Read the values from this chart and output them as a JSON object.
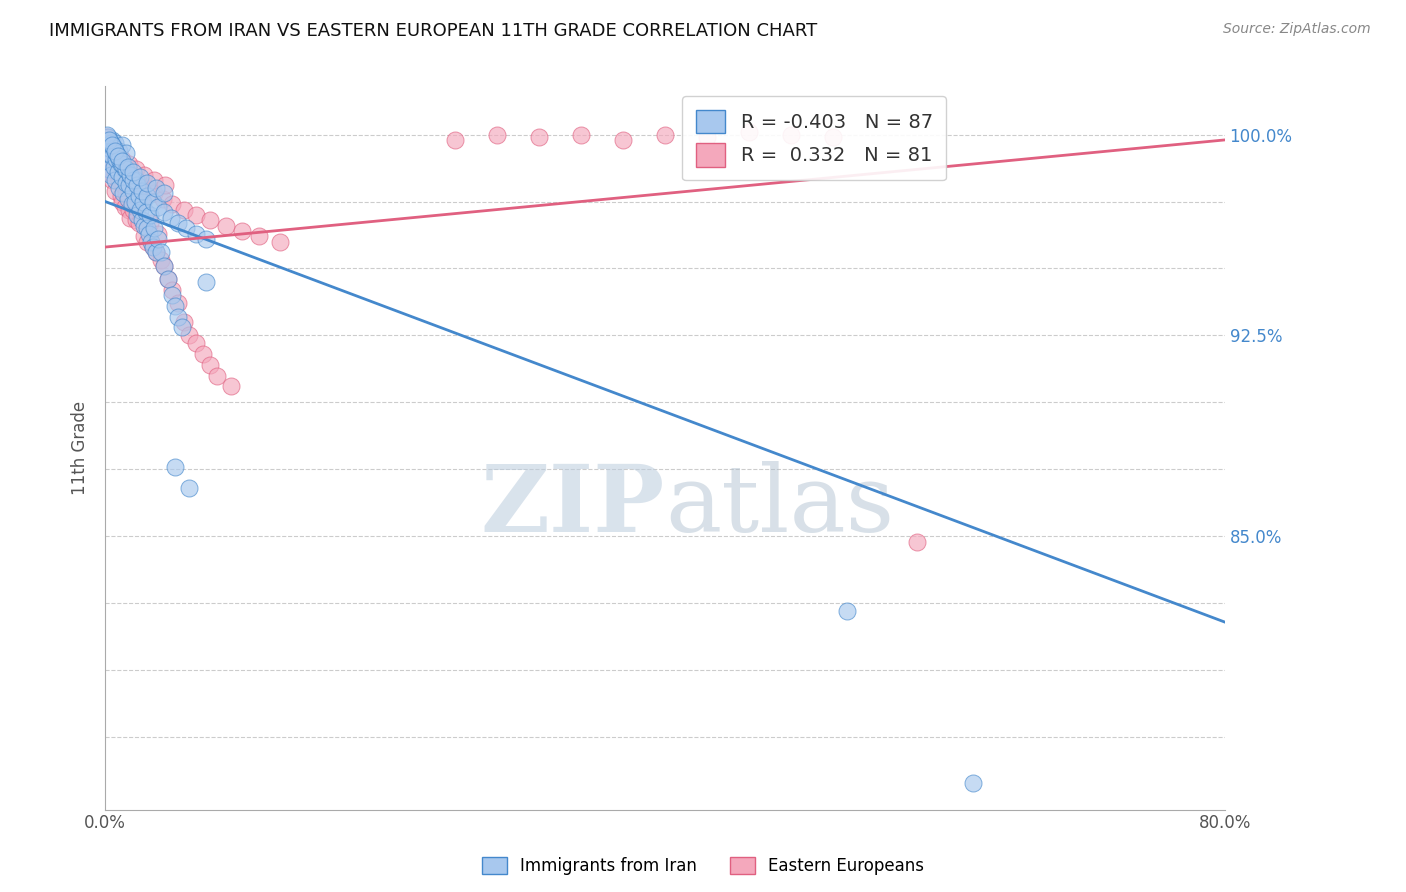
{
  "title": "IMMIGRANTS FROM IRAN VS EASTERN EUROPEAN 11TH GRADE CORRELATION CHART",
  "source": "Source: ZipAtlas.com",
  "ylabel": "11th Grade",
  "xlim": [
    0.0,
    0.8
  ],
  "ylim": [
    0.748,
    1.018
  ],
  "blue_color": "#A8C8EE",
  "pink_color": "#F4A8BC",
  "blue_line_color": "#4488CC",
  "pink_line_color": "#E06080",
  "legend_r_blue": "-0.403",
  "legend_n_blue": "87",
  "legend_r_pink": "0.332",
  "legend_n_pink": "81",
  "legend_label_blue": "Immigrants from Iran",
  "legend_label_pink": "Eastern Europeans",
  "watermark_zip": "ZIP",
  "watermark_atlas": "atlas",
  "blue_trend_x": [
    0.0,
    0.8
  ],
  "blue_trend_y": [
    0.975,
    0.818
  ],
  "pink_trend_x": [
    0.0,
    0.8
  ],
  "pink_trend_y": [
    0.958,
    0.998
  ],
  "ytick_positions": [
    0.775,
    0.8,
    0.825,
    0.85,
    0.875,
    0.9,
    0.925,
    0.95,
    0.975,
    1.0
  ],
  "ytick_labels": [
    "",
    "",
    "",
    "85.0%",
    "",
    "",
    "92.5%",
    "",
    "",
    "100.0%"
  ],
  "ytick_labels_show": [
    false,
    false,
    false,
    true,
    false,
    false,
    true,
    false,
    false,
    true
  ],
  "grid_positions": [
    0.8,
    0.85,
    0.9,
    0.925,
    1.0,
    0.775
  ],
  "blue_scatter_x": [
    0.001,
    0.002,
    0.003,
    0.003,
    0.004,
    0.005,
    0.005,
    0.006,
    0.007,
    0.007,
    0.008,
    0.009,
    0.01,
    0.01,
    0.011,
    0.012,
    0.012,
    0.013,
    0.014,
    0.015,
    0.015,
    0.016,
    0.017,
    0.018,
    0.019,
    0.02,
    0.021,
    0.022,
    0.023,
    0.024,
    0.025,
    0.026,
    0.027,
    0.028,
    0.029,
    0.03,
    0.031,
    0.032,
    0.033,
    0.034,
    0.035,
    0.036,
    0.038,
    0.04,
    0.042,
    0.045,
    0.048,
    0.05,
    0.052,
    0.055,
    0.002,
    0.004,
    0.006,
    0.008,
    0.01,
    0.012,
    0.015,
    0.018,
    0.02,
    0.023,
    0.026,
    0.03,
    0.034,
    0.038,
    0.042,
    0.047,
    0.052,
    0.058,
    0.065,
    0.072,
    0.001,
    0.003,
    0.005,
    0.007,
    0.009,
    0.012,
    0.016,
    0.02,
    0.025,
    0.03,
    0.036,
    0.042,
    0.05,
    0.06,
    0.072,
    0.53,
    0.62
  ],
  "blue_scatter_y": [
    0.99,
    0.993,
    0.987,
    0.995,
    0.985,
    0.992,
    0.998,
    0.988,
    0.983,
    0.997,
    0.991,
    0.986,
    0.994,
    0.98,
    0.989,
    0.984,
    0.996,
    0.978,
    0.987,
    0.982,
    0.993,
    0.976,
    0.981,
    0.985,
    0.974,
    0.979,
    0.975,
    0.983,
    0.97,
    0.977,
    0.972,
    0.968,
    0.975,
    0.966,
    0.971,
    0.965,
    0.963,
    0.97,
    0.96,
    0.958,
    0.965,
    0.956,
    0.961,
    0.956,
    0.951,
    0.946,
    0.94,
    0.936,
    0.932,
    0.928,
    0.999,
    0.997,
    0.995,
    0.993,
    0.991,
    0.989,
    0.987,
    0.985,
    0.983,
    0.981,
    0.979,
    0.977,
    0.975,
    0.973,
    0.971,
    0.969,
    0.967,
    0.965,
    0.963,
    0.961,
    1.0,
    0.998,
    0.996,
    0.994,
    0.992,
    0.99,
    0.988,
    0.986,
    0.984,
    0.982,
    0.98,
    0.978,
    0.876,
    0.868,
    0.945,
    0.822,
    0.758
  ],
  "pink_scatter_x": [
    0.001,
    0.002,
    0.003,
    0.004,
    0.005,
    0.006,
    0.007,
    0.008,
    0.009,
    0.01,
    0.011,
    0.012,
    0.013,
    0.014,
    0.015,
    0.016,
    0.017,
    0.018,
    0.02,
    0.022,
    0.024,
    0.026,
    0.028,
    0.03,
    0.032,
    0.034,
    0.036,
    0.038,
    0.04,
    0.042,
    0.045,
    0.048,
    0.052,
    0.056,
    0.06,
    0.065,
    0.07,
    0.075,
    0.08,
    0.09,
    0.002,
    0.004,
    0.006,
    0.008,
    0.01,
    0.013,
    0.016,
    0.02,
    0.025,
    0.03,
    0.035,
    0.041,
    0.048,
    0.056,
    0.065,
    0.075,
    0.086,
    0.098,
    0.11,
    0.125,
    0.25,
    0.28,
    0.31,
    0.34,
    0.37,
    0.4,
    0.43,
    0.46,
    0.49,
    0.52,
    0.001,
    0.003,
    0.005,
    0.008,
    0.012,
    0.017,
    0.022,
    0.028,
    0.035,
    0.043,
    0.58
  ],
  "pink_scatter_y": [
    0.988,
    0.992,
    0.986,
    0.991,
    0.983,
    0.995,
    0.979,
    0.986,
    0.99,
    0.983,
    0.977,
    0.975,
    0.981,
    0.973,
    0.978,
    0.98,
    0.972,
    0.969,
    0.972,
    0.968,
    0.967,
    0.975,
    0.962,
    0.96,
    0.967,
    0.958,
    0.956,
    0.963,
    0.953,
    0.951,
    0.946,
    0.942,
    0.937,
    0.93,
    0.925,
    0.922,
    0.918,
    0.914,
    0.91,
    0.906,
    0.998,
    0.996,
    0.994,
    0.992,
    0.99,
    0.988,
    0.986,
    0.984,
    0.982,
    0.98,
    0.978,
    0.976,
    0.974,
    0.972,
    0.97,
    0.968,
    0.966,
    0.964,
    0.962,
    0.96,
    0.998,
    1.0,
    0.999,
    1.0,
    0.998,
    1.0,
    0.999,
    1.001,
    1.0,
    0.999,
    0.999,
    0.997,
    0.995,
    0.993,
    0.991,
    0.989,
    0.987,
    0.985,
    0.983,
    0.981,
    0.848
  ]
}
